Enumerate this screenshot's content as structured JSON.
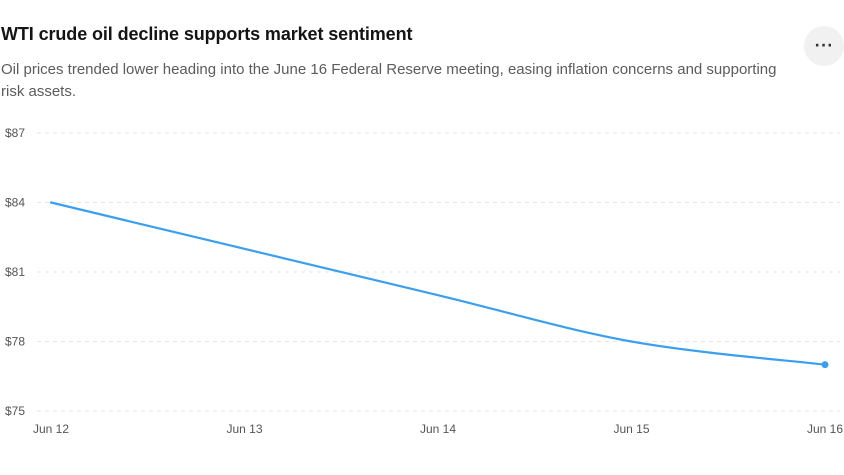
{
  "header": {
    "title": "WTI crude oil decline supports market sentiment",
    "subtitle": "Oil prices trended lower heading into the June 16 Federal Reserve meeting, easing inflation concerns and supporting risk assets.",
    "more_icon": "more-horizontal-icon",
    "more_label": "···"
  },
  "colors": {
    "line": "#3b9ff0",
    "grid": "#e6e6e6",
    "button_bg": "#f1f1f1"
  },
  "chart_data": {
    "type": "line",
    "title": "WTI crude oil decline supports market sentiment",
    "xlabel": "",
    "ylabel": "",
    "x": [
      "Jun 12",
      "Jun 13",
      "Jun 14",
      "Jun 15",
      "Jun 16"
    ],
    "y_ticks": [
      75,
      78,
      81,
      84,
      87
    ],
    "y_tick_labels": [
      "$75",
      "$78",
      "$81",
      "$84",
      "$87"
    ],
    "ylim": [
      75,
      87
    ],
    "grid": true,
    "series": [
      {
        "values": [
          84,
          82,
          80,
          78,
          77
        ]
      }
    ],
    "end_marker": true
  }
}
